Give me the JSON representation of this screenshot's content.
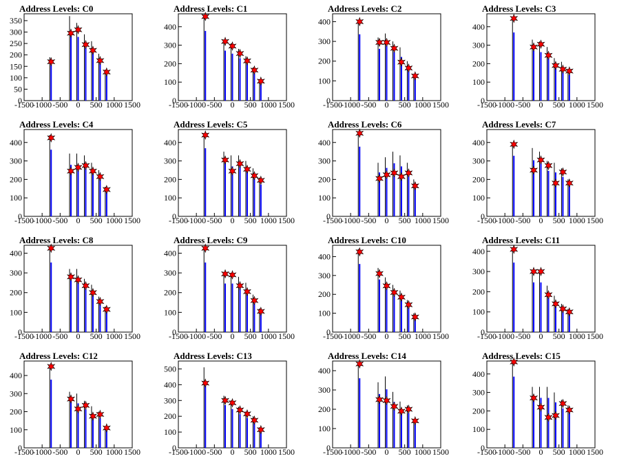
{
  "chart_data": [
    {
      "type": "bar",
      "title": "Address Levels: C0",
      "xlim": [
        -1500,
        1500
      ],
      "ylim": [
        0,
        380
      ],
      "yticks": [
        0,
        50,
        100,
        150,
        200,
        250,
        300,
        350
      ],
      "xticks": [
        -1500,
        -1000,
        -500,
        0,
        500,
        1000,
        1500
      ],
      "spikes": [
        {
          "x": -750,
          "height": 190,
          "marker": 170
        },
        {
          "x": -200,
          "height": 370,
          "marker": 295
        },
        {
          "x": 0,
          "height": 340,
          "marker": 310
        },
        {
          "x": 210,
          "height": 290,
          "marker": 245
        },
        {
          "x": 410,
          "height": 260,
          "marker": 220
        },
        {
          "x": 610,
          "height": 205,
          "marker": 175
        },
        {
          "x": 790,
          "height": 135,
          "marker": 125
        }
      ]
    },
    {
      "type": "bar",
      "title": "Address Levels: C1",
      "xlim": [
        -1500,
        1500
      ],
      "ylim": [
        0,
        470
      ],
      "yticks": [
        0,
        100,
        200,
        300,
        400
      ],
      "xticks": [
        -1500,
        -1000,
        -500,
        0,
        500,
        1000,
        1500
      ],
      "spikes": [
        {
          "x": -750,
          "height": 460,
          "marker": 455
        },
        {
          "x": -200,
          "height": 330,
          "marker": 320
        },
        {
          "x": 0,
          "height": 310,
          "marker": 295
        },
        {
          "x": 210,
          "height": 280,
          "marker": 255
        },
        {
          "x": 410,
          "height": 240,
          "marker": 215
        },
        {
          "x": 610,
          "height": 180,
          "marker": 165
        },
        {
          "x": 790,
          "height": 110,
          "marker": 105
        }
      ]
    },
    {
      "type": "bar",
      "title": "Address Levels: C2",
      "xlim": [
        -1500,
        1500
      ],
      "ylim": [
        0,
        440
      ],
      "yticks": [
        0,
        100,
        200,
        300,
        400
      ],
      "xticks": [
        -1500,
        -1000,
        -500,
        0,
        500,
        1000,
        1500
      ],
      "spikes": [
        {
          "x": -750,
          "height": 410,
          "marker": 400
        },
        {
          "x": -200,
          "height": 320,
          "marker": 295
        },
        {
          "x": 0,
          "height": 340,
          "marker": 295
        },
        {
          "x": 210,
          "height": 300,
          "marker": 265
        },
        {
          "x": 410,
          "height": 270,
          "marker": 195
        },
        {
          "x": 610,
          "height": 200,
          "marker": 165
        },
        {
          "x": 790,
          "height": 135,
          "marker": 125
        }
      ]
    },
    {
      "type": "bar",
      "title": "Address Levels: C3",
      "xlim": [
        -1500,
        1500
      ],
      "ylim": [
        0,
        470
      ],
      "yticks": [
        0,
        100,
        200,
        300,
        400
      ],
      "xticks": [
        -1500,
        -1000,
        -500,
        0,
        500,
        1000,
        1500
      ],
      "spikes": [
        {
          "x": -750,
          "height": 450,
          "marker": 445
        },
        {
          "x": -200,
          "height": 330,
          "marker": 290
        },
        {
          "x": 0,
          "height": 320,
          "marker": 305
        },
        {
          "x": 210,
          "height": 290,
          "marker": 245
        },
        {
          "x": 410,
          "height": 230,
          "marker": 190
        },
        {
          "x": 610,
          "height": 210,
          "marker": 170
        },
        {
          "x": 790,
          "height": 170,
          "marker": 160
        }
      ]
    },
    {
      "type": "bar",
      "title": "Address Levels: C4",
      "xlim": [
        -1500,
        1500
      ],
      "ylim": [
        0,
        470
      ],
      "yticks": [
        0,
        100,
        200,
        300,
        400
      ],
      "xticks": [
        -1500,
        -1000,
        -500,
        0,
        500,
        1000,
        1500
      ],
      "spikes": [
        {
          "x": -750,
          "height": 440,
          "marker": 425
        },
        {
          "x": -200,
          "height": 340,
          "marker": 245
        },
        {
          "x": 0,
          "height": 340,
          "marker": 265
        },
        {
          "x": 210,
          "height": 330,
          "marker": 275
        },
        {
          "x": 410,
          "height": 290,
          "marker": 245
        },
        {
          "x": 610,
          "height": 250,
          "marker": 215
        },
        {
          "x": 790,
          "height": 160,
          "marker": 145
        }
      ]
    },
    {
      "type": "bar",
      "title": "Address Levels: C5",
      "xlim": [
        -1500,
        1500
      ],
      "ylim": [
        0,
        470
      ],
      "yticks": [
        0,
        100,
        200,
        300,
        400
      ],
      "xticks": [
        -1500,
        -1000,
        -500,
        0,
        500,
        1000,
        1500
      ],
      "spikes": [
        {
          "x": -750,
          "height": 450,
          "marker": 440
        },
        {
          "x": -200,
          "height": 350,
          "marker": 305
        },
        {
          "x": 0,
          "height": 330,
          "marker": 245
        },
        {
          "x": 210,
          "height": 330,
          "marker": 285
        },
        {
          "x": 410,
          "height": 300,
          "marker": 255
        },
        {
          "x": 610,
          "height": 260,
          "marker": 220
        },
        {
          "x": 790,
          "height": 210,
          "marker": 195
        }
      ]
    },
    {
      "type": "bar",
      "title": "Address Levels: C6",
      "xlim": [
        -1500,
        1500
      ],
      "ylim": [
        0,
        470
      ],
      "yticks": [
        0,
        100,
        200,
        300,
        400
      ],
      "xticks": [
        -1500,
        -1000,
        -500,
        0,
        500,
        1000,
        1500
      ],
      "spikes": [
        {
          "x": -750,
          "height": 460,
          "marker": 450
        },
        {
          "x": -200,
          "height": 290,
          "marker": 205
        },
        {
          "x": 0,
          "height": 320,
          "marker": 225
        },
        {
          "x": 210,
          "height": 350,
          "marker": 235
        },
        {
          "x": 410,
          "height": 330,
          "marker": 215
        },
        {
          "x": 610,
          "height": 290,
          "marker": 235
        },
        {
          "x": 790,
          "height": 200,
          "marker": 165
        }
      ]
    },
    {
      "type": "bar",
      "title": "Address Levels: C7",
      "xlim": [
        -1500,
        1500
      ],
      "ylim": [
        0,
        470
      ],
      "yticks": [
        0,
        100,
        200,
        300,
        400
      ],
      "xticks": [
        -1500,
        -1000,
        -500,
        0,
        500,
        1000,
        1500
      ],
      "spikes": [
        {
          "x": -750,
          "height": 400,
          "marker": 390
        },
        {
          "x": -200,
          "height": 370,
          "marker": 250
        },
        {
          "x": 0,
          "height": 350,
          "marker": 305
        },
        {
          "x": 210,
          "height": 300,
          "marker": 275
        },
        {
          "x": 410,
          "height": 290,
          "marker": 180
        },
        {
          "x": 610,
          "height": 260,
          "marker": 240
        },
        {
          "x": 790,
          "height": 200,
          "marker": 180
        }
      ]
    },
    {
      "type": "bar",
      "title": "Address Levels: C8",
      "xlim": [
        -1500,
        1500
      ],
      "ylim": [
        0,
        440
      ],
      "yticks": [
        0,
        100,
        200,
        300,
        400
      ],
      "xticks": [
        -1500,
        -1000,
        -500,
        0,
        500,
        1000,
        1500
      ],
      "spikes": [
        {
          "x": -750,
          "height": 430,
          "marker": 425
        },
        {
          "x": -200,
          "height": 320,
          "marker": 280
        },
        {
          "x": 0,
          "height": 320,
          "marker": 265
        },
        {
          "x": 210,
          "height": 270,
          "marker": 235
        },
        {
          "x": 410,
          "height": 240,
          "marker": 200
        },
        {
          "x": 610,
          "height": 180,
          "marker": 155
        },
        {
          "x": 790,
          "height": 130,
          "marker": 115
        }
      ]
    },
    {
      "type": "bar",
      "title": "Address Levels: C9",
      "xlim": [
        -1500,
        1500
      ],
      "ylim": [
        0,
        440
      ],
      "yticks": [
        0,
        100,
        200,
        300,
        400
      ],
      "xticks": [
        -1500,
        -1000,
        -500,
        0,
        500,
        1000,
        1500
      ],
      "spikes": [
        {
          "x": -750,
          "height": 430,
          "marker": 425
        },
        {
          "x": -200,
          "height": 300,
          "marker": 295
        },
        {
          "x": 0,
          "height": 300,
          "marker": 290
        },
        {
          "x": 210,
          "height": 280,
          "marker": 235
        },
        {
          "x": 410,
          "height": 250,
          "marker": 205
        },
        {
          "x": 610,
          "height": 190,
          "marker": 160
        },
        {
          "x": 790,
          "height": 120,
          "marker": 105
        }
      ]
    },
    {
      "type": "bar",
      "title": "Address Levels: C10",
      "xlim": [
        -1500,
        1500
      ],
      "ylim": [
        0,
        460
      ],
      "yticks": [
        0,
        100,
        200,
        300,
        400
      ],
      "xticks": [
        -1500,
        -1000,
        -500,
        0,
        500,
        1000,
        1500
      ],
      "spikes": [
        {
          "x": -750,
          "height": 440,
          "marker": 425
        },
        {
          "x": -200,
          "height": 340,
          "marker": 310
        },
        {
          "x": 0,
          "height": 290,
          "marker": 245
        },
        {
          "x": 210,
          "height": 250,
          "marker": 210
        },
        {
          "x": 410,
          "height": 220,
          "marker": 185
        },
        {
          "x": 610,
          "height": 170,
          "marker": 145
        },
        {
          "x": 790,
          "height": 100,
          "marker": 80
        }
      ]
    },
    {
      "type": "bar",
      "title": "Address Levels: C11",
      "xlim": [
        -1500,
        1500
      ],
      "ylim": [
        0,
        430
      ],
      "yticks": [
        0,
        100,
        200,
        300,
        400
      ],
      "xticks": [
        -1500,
        -1000,
        -500,
        0,
        500,
        1000,
        1500
      ],
      "spikes": [
        {
          "x": -750,
          "height": 420,
          "marker": 410
        },
        {
          "x": -200,
          "height": 300,
          "marker": 300
        },
        {
          "x": 0,
          "height": 300,
          "marker": 300
        },
        {
          "x": 210,
          "height": 230,
          "marker": 185
        },
        {
          "x": 410,
          "height": 180,
          "marker": 140
        },
        {
          "x": 610,
          "height": 140,
          "marker": 115
        },
        {
          "x": 790,
          "height": 115,
          "marker": 100
        }
      ]
    },
    {
      "type": "bar",
      "title": "Address Levels: C12",
      "xlim": [
        -1500,
        1500
      ],
      "ylim": [
        0,
        480
      ],
      "yticks": [
        0,
        100,
        200,
        300,
        400
      ],
      "xticks": [
        -1500,
        -1000,
        -500,
        0,
        500,
        1000,
        1500
      ],
      "spikes": [
        {
          "x": -750,
          "height": 460,
          "marker": 450
        },
        {
          "x": -200,
          "height": 310,
          "marker": 270
        },
        {
          "x": 0,
          "height": 300,
          "marker": 215
        },
        {
          "x": 210,
          "height": 260,
          "marker": 235
        },
        {
          "x": 410,
          "height": 230,
          "marker": 175
        },
        {
          "x": 610,
          "height": 200,
          "marker": 185
        },
        {
          "x": 790,
          "height": 120,
          "marker": 110
        }
      ]
    },
    {
      "type": "bar",
      "title": "Address Levels: C13",
      "xlim": [
        -1500,
        1500
      ],
      "ylim": [
        0,
        550
      ],
      "yticks": [
        0,
        100,
        200,
        300,
        400,
        500
      ],
      "xticks": [
        -1500,
        -1000,
        -500,
        0,
        500,
        1000,
        1500
      ],
      "spikes": [
        {
          "x": -750,
          "height": 510,
          "marker": 410
        },
        {
          "x": -200,
          "height": 330,
          "marker": 300
        },
        {
          "x": 0,
          "height": 300,
          "marker": 285
        },
        {
          "x": 210,
          "height": 260,
          "marker": 240
        },
        {
          "x": 410,
          "height": 230,
          "marker": 215
        },
        {
          "x": 610,
          "height": 200,
          "marker": 175
        },
        {
          "x": 790,
          "height": 130,
          "marker": 115
        }
      ]
    },
    {
      "type": "bar",
      "title": "Address Levels: C14",
      "xlim": [
        -1500,
        1500
      ],
      "ylim": [
        0,
        450
      ],
      "yticks": [
        0,
        100,
        200,
        300,
        400
      ],
      "xticks": [
        -1500,
        -1000,
        -500,
        0,
        500,
        1000,
        1500
      ],
      "spikes": [
        {
          "x": -750,
          "height": 440,
          "marker": 435
        },
        {
          "x": -200,
          "height": 340,
          "marker": 250
        },
        {
          "x": 0,
          "height": 370,
          "marker": 245
        },
        {
          "x": 210,
          "height": 290,
          "marker": 215
        },
        {
          "x": 410,
          "height": 240,
          "marker": 190
        },
        {
          "x": 610,
          "height": 220,
          "marker": 200
        },
        {
          "x": 790,
          "height": 150,
          "marker": 140
        }
      ]
    },
    {
      "type": "bar",
      "title": "Address Levels: C15",
      "xlim": [
        -1500,
        1500
      ],
      "ylim": [
        0,
        470
      ],
      "yticks": [
        0,
        100,
        200,
        300,
        400
      ],
      "xticks": [
        -1500,
        -1000,
        -500,
        0,
        500,
        1000,
        1500
      ],
      "spikes": [
        {
          "x": -750,
          "height": 470,
          "marker": 465
        },
        {
          "x": -200,
          "height": 330,
          "marker": 270
        },
        {
          "x": 0,
          "height": 330,
          "marker": 220
        },
        {
          "x": 210,
          "height": 330,
          "marker": 165
        },
        {
          "x": 410,
          "height": 300,
          "marker": 175
        },
        {
          "x": 610,
          "height": 260,
          "marker": 240
        },
        {
          "x": 790,
          "height": 230,
          "marker": 205
        }
      ]
    }
  ]
}
